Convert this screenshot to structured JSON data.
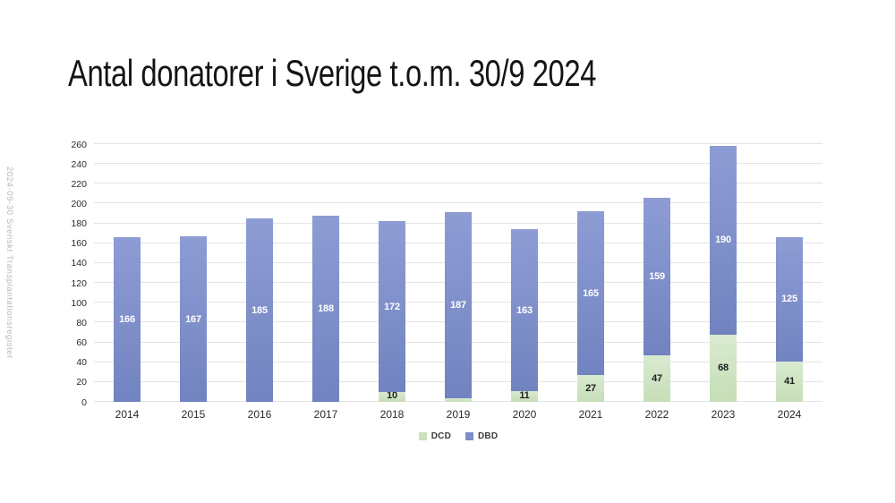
{
  "page": {
    "title": "Antal donatorer i Sverige t.o.m. 30/9 2024",
    "source_note": "2024-09-30 Svenskt Transplantationsregister"
  },
  "chart_data": {
    "type": "bar",
    "stacked": true,
    "title": "Antal donatorer i Sverige t.o.m. 30/9 2024",
    "xlabel": "",
    "ylabel": "",
    "ylim": [
      0,
      260
    ],
    "ytick_step": 20,
    "grid": true,
    "legend_position": "bottom",
    "categories": [
      "2014",
      "2015",
      "2016",
      "2017",
      "2018",
      "2019",
      "2020",
      "2021",
      "2022",
      "2023",
      "2024"
    ],
    "series": [
      {
        "name": "DCD",
        "values": [
          0,
          0,
          0,
          0,
          10,
          4,
          11,
          27,
          47,
          68,
          41
        ],
        "color": "#cbe0bc",
        "color_top": "#d9ead0",
        "color_bottom": "#c6deb7",
        "label_color": "#1f1f1f"
      },
      {
        "name": "DBD",
        "values": [
          166,
          167,
          185,
          188,
          172,
          187,
          163,
          165,
          159,
          190,
          125
        ],
        "color": "#7c8dc8",
        "color_top": "#8e9cd4",
        "color_bottom": "#7183c0",
        "label_color": "#ffffff"
      }
    ],
    "totals": [
      166,
      167,
      185,
      188,
      182,
      191,
      174,
      192,
      206,
      258,
      166
    ],
    "gridline_color": "#e4e4e4"
  }
}
